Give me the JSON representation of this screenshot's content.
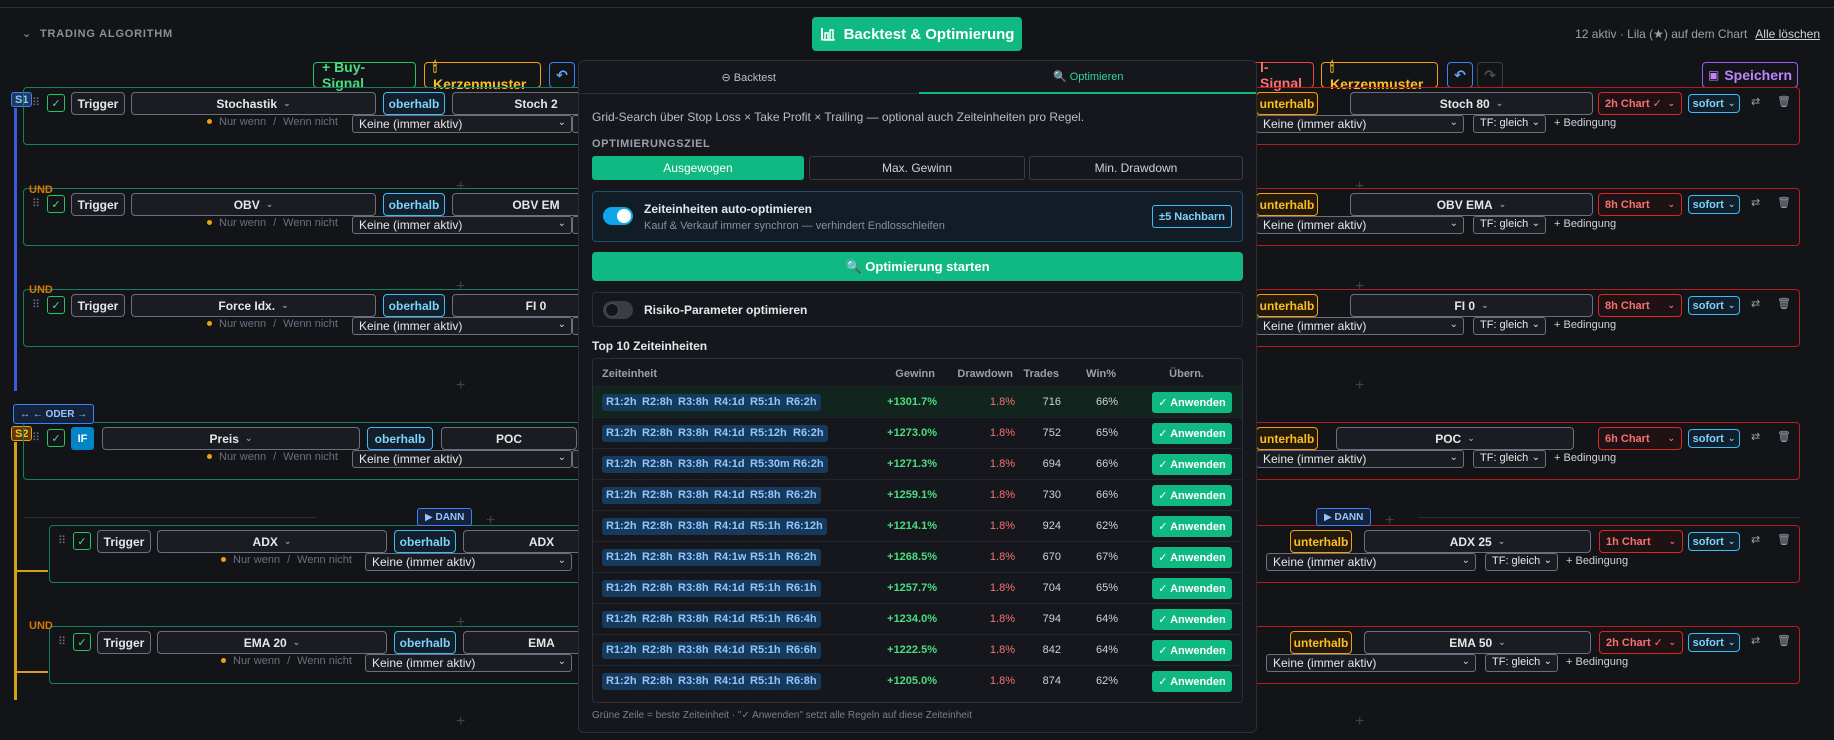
{
  "header": {
    "section_title": "TRADING ALGORITHM",
    "backtest_button": "Backtest & Optimierung",
    "status_text": "12 aktiv · Lila (★) auf dem Chart",
    "clear_all": "Alle löschen"
  },
  "toolbar": {
    "buy_signal": "+ Buy-Signal",
    "kerzenmuster": "🕯 Kerzenmuster",
    "sell_signal": "l-Signal",
    "save": "Speichern"
  },
  "labels": {
    "s1": "S1",
    "s2": "S2",
    "trigger": "Trigger",
    "if": "IF",
    "oberhalb": "oberhalb",
    "unterhalb": "unterhalb",
    "nur_wenn": "Nur wenn",
    "slash": "/",
    "wenn_nicht": "Wenn nicht",
    "keine": "Keine (immer aktiv)",
    "tf_gleich": "TF: gleich",
    "bedingung": "+ Bedingung",
    "sofort": "sofort",
    "und": "UND",
    "oder": "↔ ← ODER →",
    "dann": "▶ DANN",
    "plus": "+"
  },
  "left_rows": [
    {
      "indicator": "Stochastik",
      "target": "Stoch 2"
    },
    {
      "indicator": "OBV",
      "target": "OBV EM"
    },
    {
      "indicator": "Force Idx.",
      "target": "FI 0"
    },
    {
      "indicator": "Preis",
      "target": "POC"
    },
    {
      "indicator": "ADX",
      "target": "ADX"
    },
    {
      "indicator": "EMA 20",
      "target": "EMA"
    }
  ],
  "right_rows": [
    {
      "target": "Stoch 80",
      "chart": "2h Chart ✓"
    },
    {
      "target": "OBV EMA",
      "chart": "8h Chart"
    },
    {
      "target": "FI 0",
      "chart": "8h Chart"
    },
    {
      "target": "POC",
      "chart": "6h Chart"
    },
    {
      "target": "ADX 25",
      "chart": "1h Chart"
    },
    {
      "target": "EMA 50",
      "chart": "2h Chart ✓"
    }
  ],
  "modal": {
    "tab_backtest": "⊖ Backtest",
    "tab_optimieren": "🔍 Optimieren",
    "description": "Grid-Search über Stop Loss × Take Profit × Trailing — optional auch Zeiteinheiten pro Regel.",
    "goal_label": "OPTIMIERUNGSZIEL",
    "goals": [
      "Ausgewogen",
      "Max. Gewinn",
      "Min. Drawdown"
    ],
    "auto_title": "Zeiteinheiten auto-optimieren",
    "auto_sub": "Kauf & Verkauf immer synchron — verhindert Endlosschleifen",
    "neighbors": "±5 Nachbarn",
    "start": "🔍 Optimierung starten",
    "risk": "Risiko-Parameter optimieren",
    "top10": "Top 10 Zeiteinheiten",
    "columns": {
      "zeiteinheit": "Zeiteinheit",
      "gewinn": "Gewinn",
      "drawdown": "Drawdown",
      "trades": "Trades",
      "win": "Win%",
      "uebern": "Übern."
    },
    "apply": "✓ Anwenden",
    "rows": [
      {
        "chips": [
          "R1:2h",
          "R2:8h",
          "R3:8h",
          "R4:1d",
          "R5:1h",
          "R6:2h"
        ],
        "gain": "+1301.7%",
        "dd": "1.8%",
        "trades": "716",
        "win": "66%"
      },
      {
        "chips": [
          "R1:2h",
          "R2:8h",
          "R3:8h",
          "R4:1d",
          "R5:12h",
          "R6:2h"
        ],
        "gain": "+1273.0%",
        "dd": "1.8%",
        "trades": "752",
        "win": "65%"
      },
      {
        "chips": [
          "R1:2h",
          "R2:8h",
          "R3:8h",
          "R4:1d",
          "R5:30m",
          "R6:2h"
        ],
        "gain": "+1271.3%",
        "dd": "1.8%",
        "trades": "694",
        "win": "66%"
      },
      {
        "chips": [
          "R1:2h",
          "R2:8h",
          "R3:8h",
          "R4:1d",
          "R5:8h",
          "R6:2h"
        ],
        "gain": "+1259.1%",
        "dd": "1.8%",
        "trades": "730",
        "win": "66%"
      },
      {
        "chips": [
          "R1:2h",
          "R2:8h",
          "R3:8h",
          "R4:1d",
          "R5:1h",
          "R6:12h"
        ],
        "gain": "+1214.1%",
        "dd": "1.8%",
        "trades": "924",
        "win": "62%"
      },
      {
        "chips": [
          "R1:2h",
          "R2:8h",
          "R3:8h",
          "R4:1w",
          "R5:1h",
          "R6:2h"
        ],
        "gain": "+1268.5%",
        "dd": "1.8%",
        "trades": "670",
        "win": "67%"
      },
      {
        "chips": [
          "R1:2h",
          "R2:8h",
          "R3:8h",
          "R4:1d",
          "R5:1h",
          "R6:1h"
        ],
        "gain": "+1257.7%",
        "dd": "1.8%",
        "trades": "704",
        "win": "65%"
      },
      {
        "chips": [
          "R1:2h",
          "R2:8h",
          "R3:8h",
          "R4:1d",
          "R5:1h",
          "R6:4h"
        ],
        "gain": "+1234.0%",
        "dd": "1.8%",
        "trades": "794",
        "win": "64%"
      },
      {
        "chips": [
          "R1:2h",
          "R2:8h",
          "R3:8h",
          "R4:1d",
          "R5:1h",
          "R6:6h"
        ],
        "gain": "+1222.5%",
        "dd": "1.8%",
        "trades": "842",
        "win": "64%"
      },
      {
        "chips": [
          "R1:2h",
          "R2:8h",
          "R3:8h",
          "R4:1d",
          "R5:1h",
          "R6:8h"
        ],
        "gain": "+1205.0%",
        "dd": "1.8%",
        "trades": "874",
        "win": "62%"
      }
    ],
    "footer": "Grüne Zeile = beste Zeiteinheit · \"✓ Anwenden\" setzt alle Regeln auf diese Zeiteinheit"
  },
  "colors": {
    "accent": "#10b981",
    "buy": "#22c55e",
    "sell": "#ef4444",
    "info": "#38bdf8",
    "warn": "#f59e0b",
    "purple": "#a855f7"
  }
}
